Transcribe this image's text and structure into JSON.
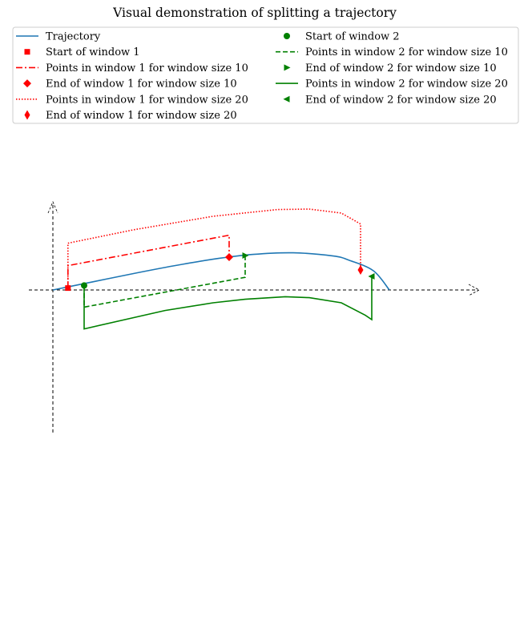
{
  "title": "Visual demonstration of splitting a trajectory",
  "legend": [
    {
      "label": "Trajectory",
      "kind": "line",
      "color": "#1f77b4",
      "dash": "solid"
    },
    {
      "label": "Start of window 1",
      "kind": "marker",
      "marker": "square",
      "color": "#ff0000"
    },
    {
      "label": "Points in window 1 for window size 10",
      "kind": "line",
      "color": "#ff0000",
      "dash": "dashdot"
    },
    {
      "label": "End of window 1 for window size 10",
      "kind": "marker",
      "marker": "diamond",
      "color": "#ff0000"
    },
    {
      "label": "Points in window 1 for window size 20",
      "kind": "line",
      "color": "#ff0000",
      "dash": "dotted"
    },
    {
      "label": "End of window 1 for window size 20",
      "kind": "marker",
      "marker": "thin_diamond",
      "color": "#ff0000"
    },
    {
      "label": "Start of window 2",
      "kind": "marker",
      "marker": "circle",
      "color": "#008000"
    },
    {
      "label": "Points in window 2 for window size 10",
      "kind": "line",
      "color": "#008000",
      "dash": "dashed"
    },
    {
      "label": "End of window 2 for window size 10",
      "kind": "marker",
      "marker": "triangle_right",
      "color": "#008000"
    },
    {
      "label": "Points in window 2 for window size 20",
      "kind": "line",
      "color": "#008000",
      "dash": "solid"
    },
    {
      "label": "End of window 2 for window size 20",
      "kind": "marker",
      "marker": "triangle_left",
      "color": "#008000"
    }
  ],
  "chart_data": {
    "type": "line",
    "title": "Visual demonstration of splitting a trajectory",
    "xlabel": "",
    "ylabel": "",
    "xlim": [
      -0.15,
      2.7
    ],
    "ylim": [
      -0.9,
      0.55
    ],
    "grid": false,
    "legend_position": "top",
    "axes": "arrows through origin",
    "trajectory": {
      "x": [
        0,
        0.25,
        0.5,
        0.75,
        1.0,
        1.25,
        1.5,
        1.75,
        1.85,
        2.0,
        2.1
      ],
      "y": [
        0,
        0.051,
        0.102,
        0.15,
        0.192,
        0.222,
        0.232,
        0.212,
        0.185,
        0.12,
        0.0
      ]
    },
    "window_1_start": {
      "x": 0.094,
      "y": 0.012
    },
    "window_1_size_10": {
      "x": [
        0.094,
        0.094,
        1.1,
        1.1
      ],
      "y": [
        0.012,
        0.152,
        0.342,
        0.202
      ]
    },
    "window_1_end_size_10": {
      "x": 1.1,
      "y": 0.205
    },
    "window_1_size_20": {
      "x": [
        0.094,
        0.094,
        0.5,
        1.0,
        1.4,
        1.6,
        1.8,
        1.92,
        1.92
      ],
      "y": [
        0.012,
        0.292,
        0.375,
        0.46,
        0.502,
        0.505,
        0.48,
        0.412,
        0.122
      ],
      "note_marker": null
    },
    "window_1_end_size_20": {
      "x": 1.92,
      "y": 0.125
    },
    "window_2_start": {
      "x": 0.195,
      "y": 0.028
    },
    "window_2_size_10": {
      "x": [
        1.2,
        1.2,
        0.195,
        0.195
      ],
      "y": [
        0.215,
        0.079,
        -0.107,
        0.028
      ]
    },
    "window_2_end_size_10": {
      "x": 1.2,
      "y": 0.215
    },
    "window_2_size_20": {
      "x": [
        1.99,
        1.99,
        1.95,
        1.8,
        1.6,
        1.45,
        1.2,
        1.0,
        0.7,
        0.195,
        0.195
      ],
      "y": [
        0.085,
        -0.185,
        -0.158,
        -0.08,
        -0.048,
        -0.042,
        -0.058,
        -0.08,
        -0.128,
        -0.243,
        0.028
      ]
    },
    "window_2_end_size_20": {
      "x": 1.99,
      "y": 0.085
    }
  }
}
